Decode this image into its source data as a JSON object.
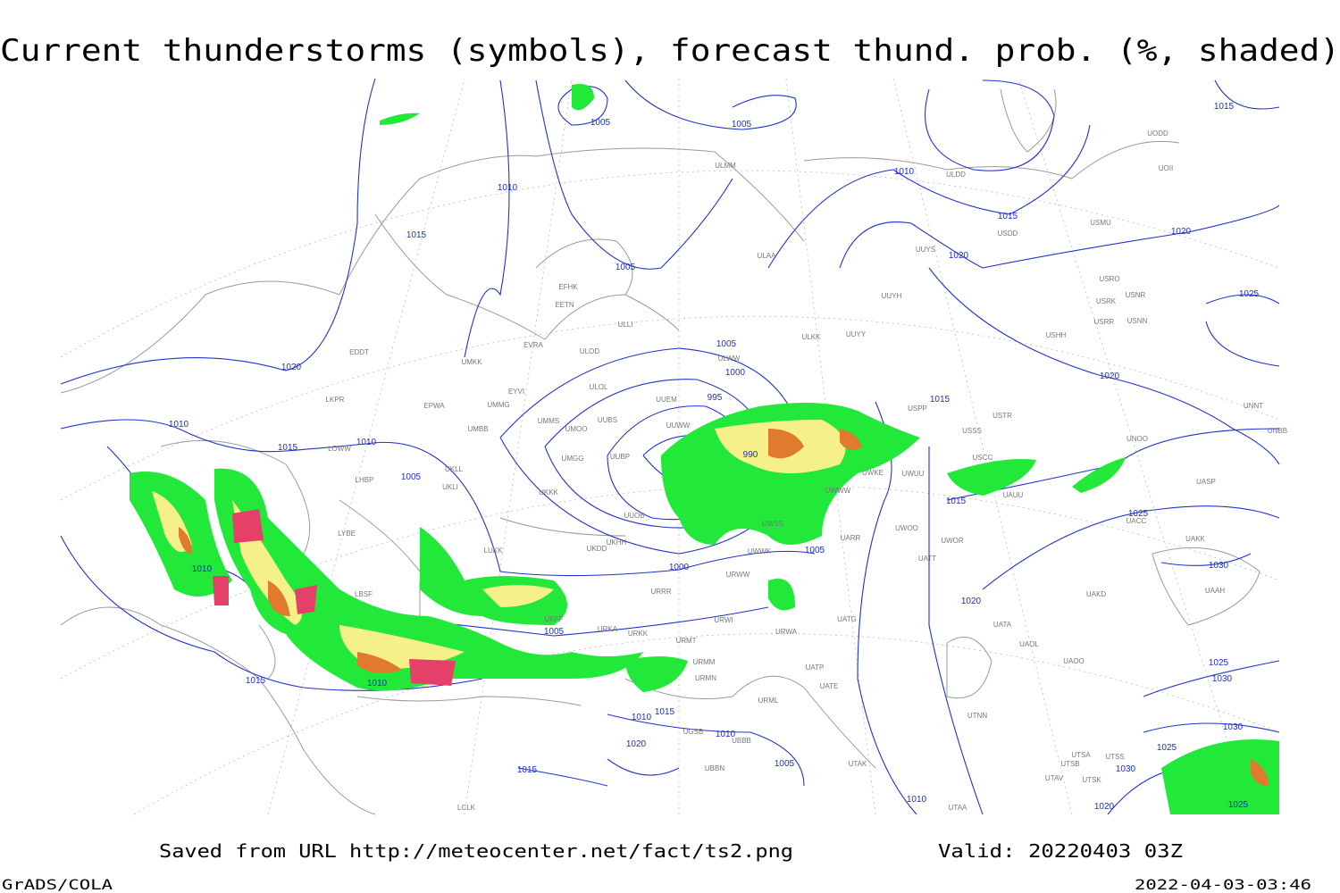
{
  "header": {
    "title": "Current thunderstorms (symbols), forecast thund. prob. (%, shaded)"
  },
  "map": {
    "isobar_labels": [
      "1005",
      "1005",
      "1010",
      "1015",
      "1010",
      "1015",
      "1020",
      "1020",
      "1015",
      "1025",
      "1005",
      "1020",
      "1005",
      "1000",
      "995",
      "990",
      "1010",
      "1015",
      "1010",
      "1005",
      "1015",
      "1020",
      "1015",
      "1025",
      "1030",
      "1010",
      "1000",
      "1005",
      "1020",
      "1005",
      "1015",
      "1010",
      "1010",
      "1015",
      "1010",
      "1020",
      "1015",
      "1005",
      "1010",
      "1020",
      "1025",
      "1030",
      "1030",
      "1025",
      "1030",
      "1025"
    ],
    "station_labels": [
      "ULMM",
      "ULDD",
      "UODD",
      "UOII",
      "USMU",
      "USDD",
      "ULAA",
      "UUYS",
      "USRO",
      "USRK",
      "USNR",
      "USRR",
      "USNN",
      "UUYH",
      "USHH",
      "EFHK",
      "EETN",
      "ULLI",
      "ULKK",
      "UUYY",
      "EVRA",
      "ULOD",
      "EDDT",
      "UMKK",
      "ULWW",
      "EYVI",
      "ULOL",
      "UUEM",
      "LKPR",
      "EPWA",
      "UMMG",
      "UUWW",
      "UMMS",
      "UUBS",
      "UMOO",
      "UMBB",
      "USTR",
      "USPP",
      "UNNT",
      "USSS",
      "UNOO",
      "UNBB",
      "UWKE",
      "UWUU",
      "USCC",
      "LOWW",
      "LHBP",
      "UKLL",
      "UKLI",
      "UMGG",
      "UUBP",
      "UKKK",
      "UASP",
      "UAUU",
      "UUOB",
      "UWWW",
      "UWSS",
      "LYBE",
      "UKHH",
      "UKDD",
      "LUKK",
      "UWOO",
      "UWOR",
      "UACC",
      "UAKK",
      "UARR",
      "UWWK",
      "UATT",
      "LBSF",
      "URRR",
      "URWW",
      "UAKD",
      "UAAH",
      "UKFF",
      "URKA",
      "URKK",
      "URWI",
      "URWA",
      "UATG",
      "UATA",
      "UAOL",
      "UAOO",
      "URMT",
      "URMM",
      "URMN",
      "UATP",
      "UATE",
      "URML",
      "UTNN",
      "UGSB",
      "UBBB",
      "UBBN",
      "UTAK",
      "UTSA",
      "UTSS",
      "UTSB",
      "UTAV",
      "UTSK",
      "UTAA",
      "LCLK"
    ]
  },
  "footer": {
    "source": "Saved from URL http://meteocenter.net/fact/ts2.png",
    "valid": "Valid: 20220403 03Z",
    "credit": "GrADS/COLA",
    "timestamp": "2022-04-03-03:46"
  }
}
